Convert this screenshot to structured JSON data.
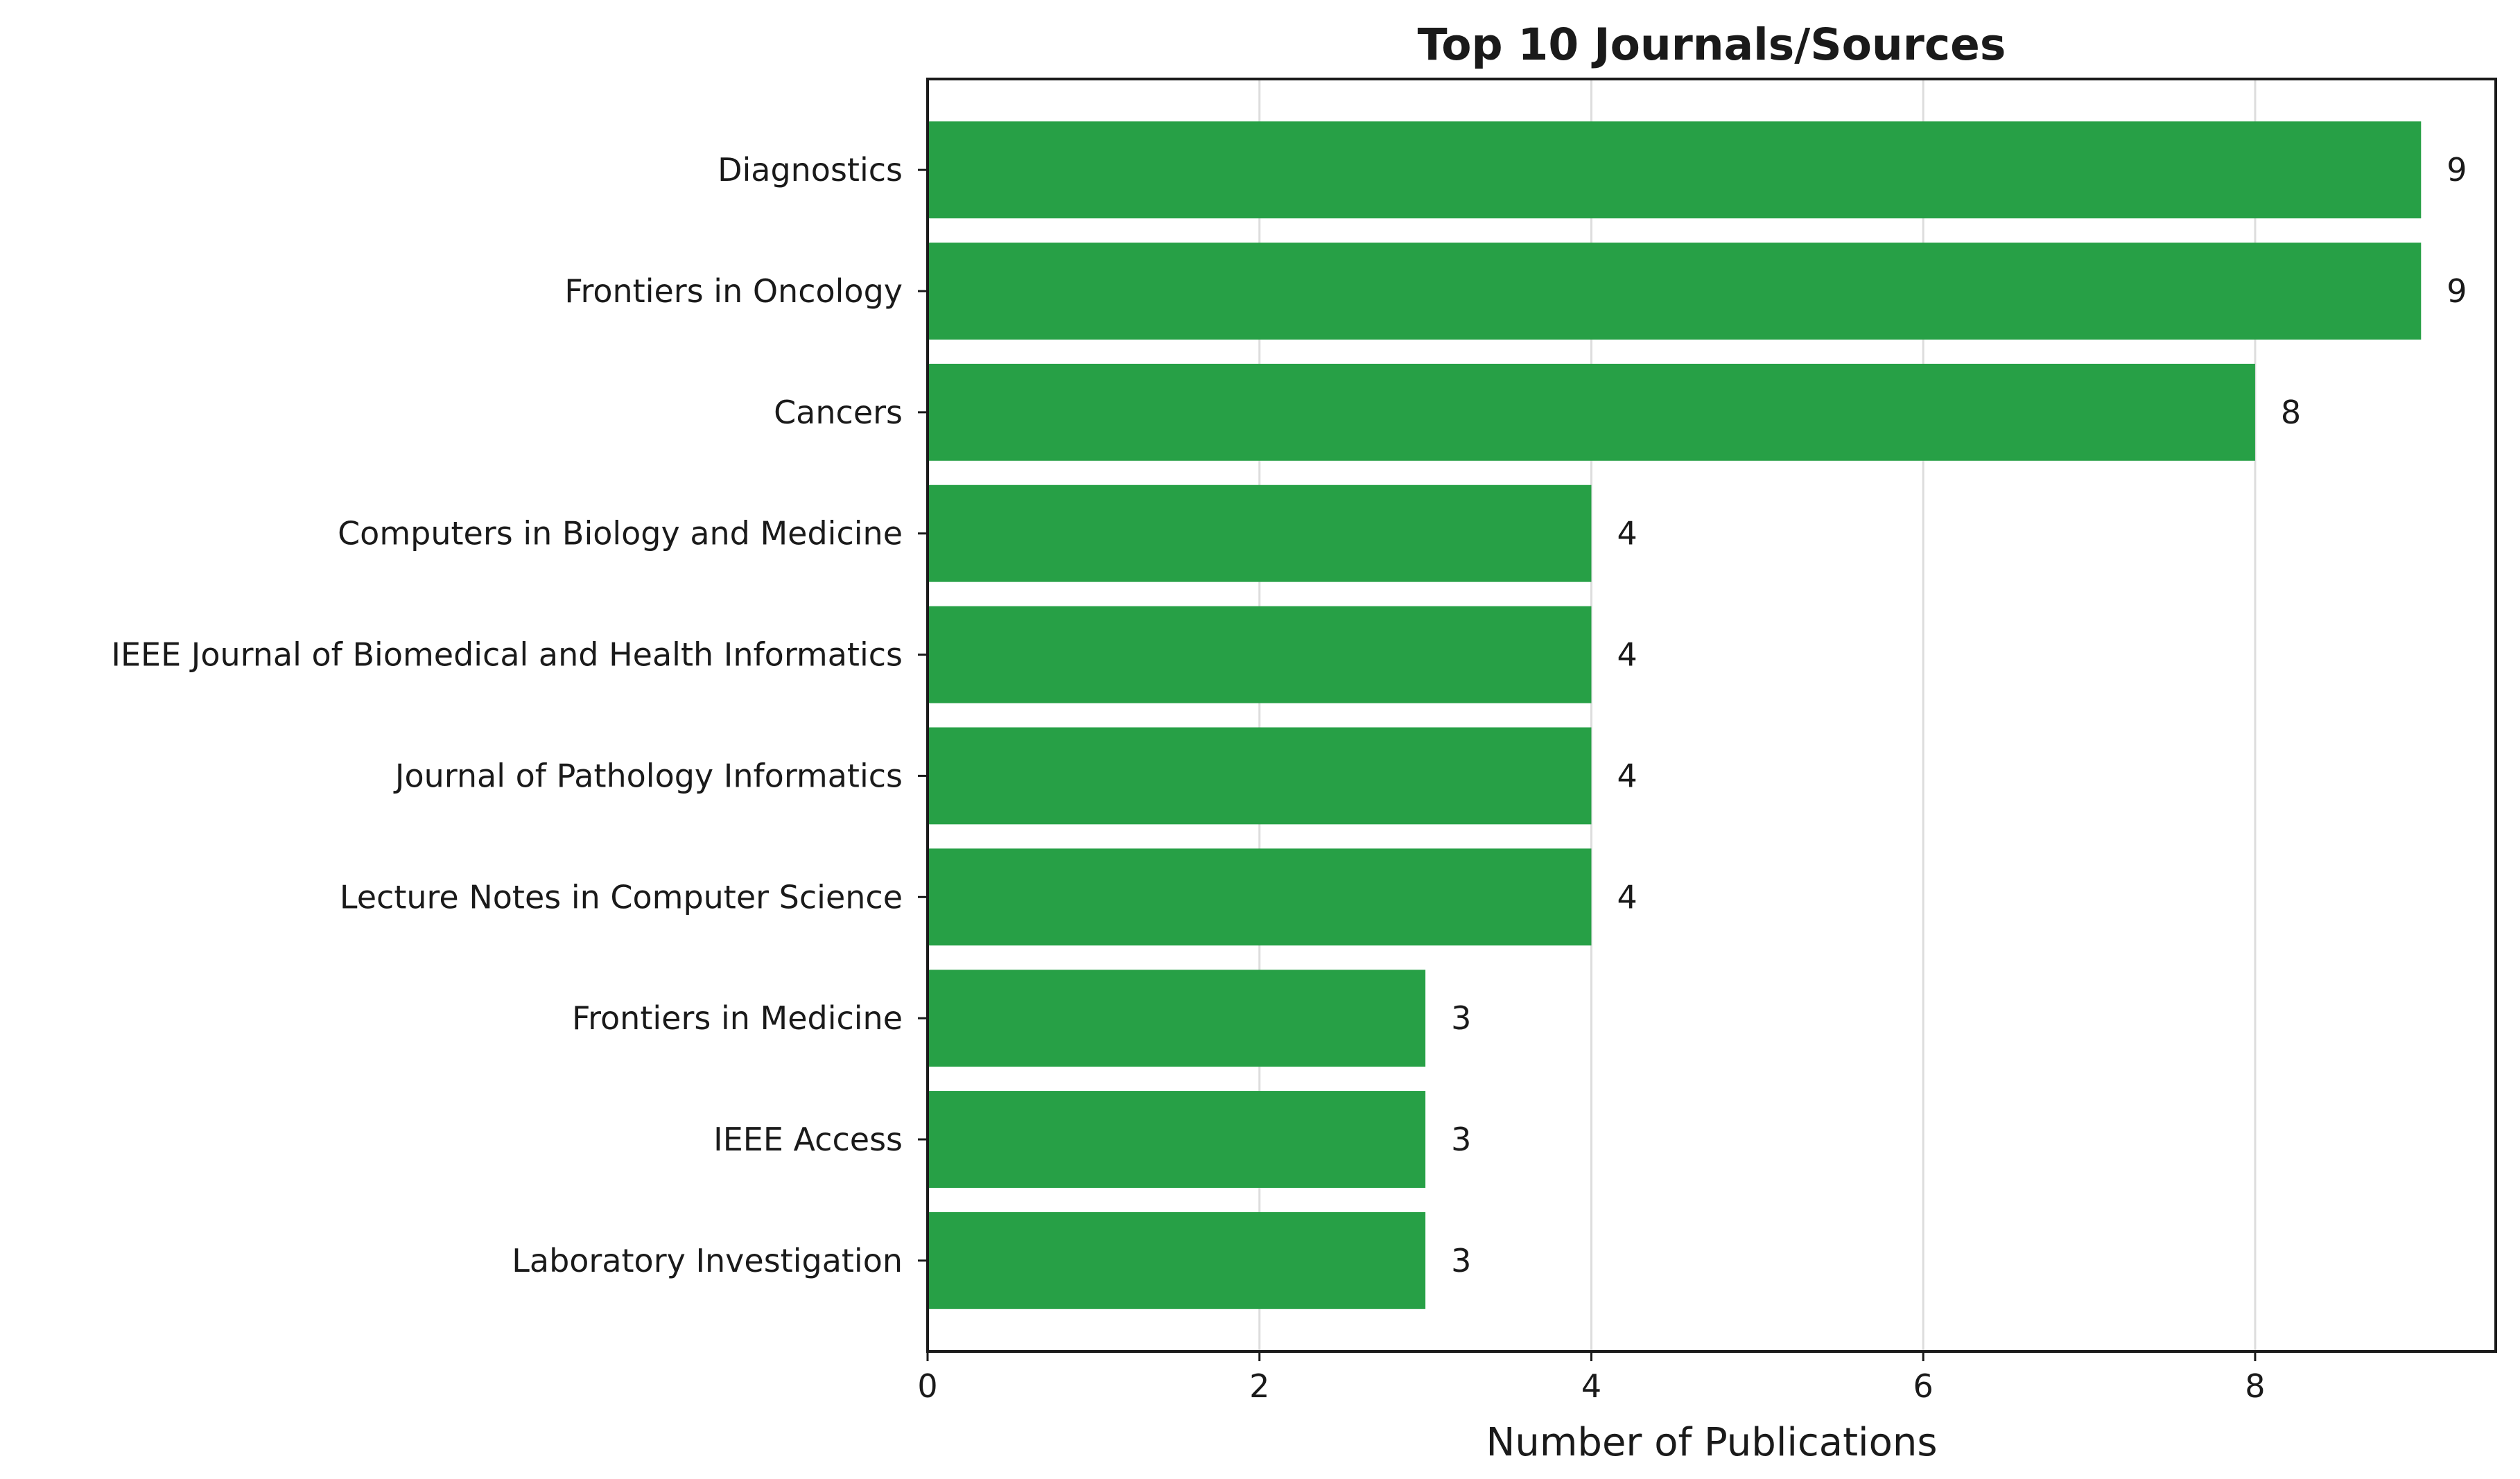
{
  "chart_data": {
    "type": "bar",
    "orientation": "horizontal",
    "title": "Top 10 Journals/Sources",
    "xlabel": "Number of Publications",
    "ylabel": "",
    "categories": [
      "Diagnostics",
      "Frontiers in Oncology",
      "Cancers",
      "Computers in Biology and Medicine",
      "IEEE Journal of Biomedical and Health Informatics",
      "Journal of Pathology Informatics",
      "Lecture Notes in Computer Science",
      "Frontiers in Medicine",
      "IEEE Access",
      "Laboratory Investigation"
    ],
    "values": [
      9,
      9,
      8,
      4,
      4,
      4,
      4,
      3,
      3,
      3
    ],
    "data_labels": [
      "9",
      "9",
      "8",
      "4",
      "4",
      "4",
      "4",
      "3",
      "3",
      "3"
    ],
    "xticks": [
      0,
      2,
      4,
      6,
      8
    ],
    "xtick_labels": [
      "0",
      "2",
      "4",
      "6",
      "8"
    ],
    "xlim": [
      0,
      9.45
    ],
    "grid": "vertical",
    "legend": "none",
    "bar_color": "#27a046",
    "grid_color": "#dddddd"
  }
}
